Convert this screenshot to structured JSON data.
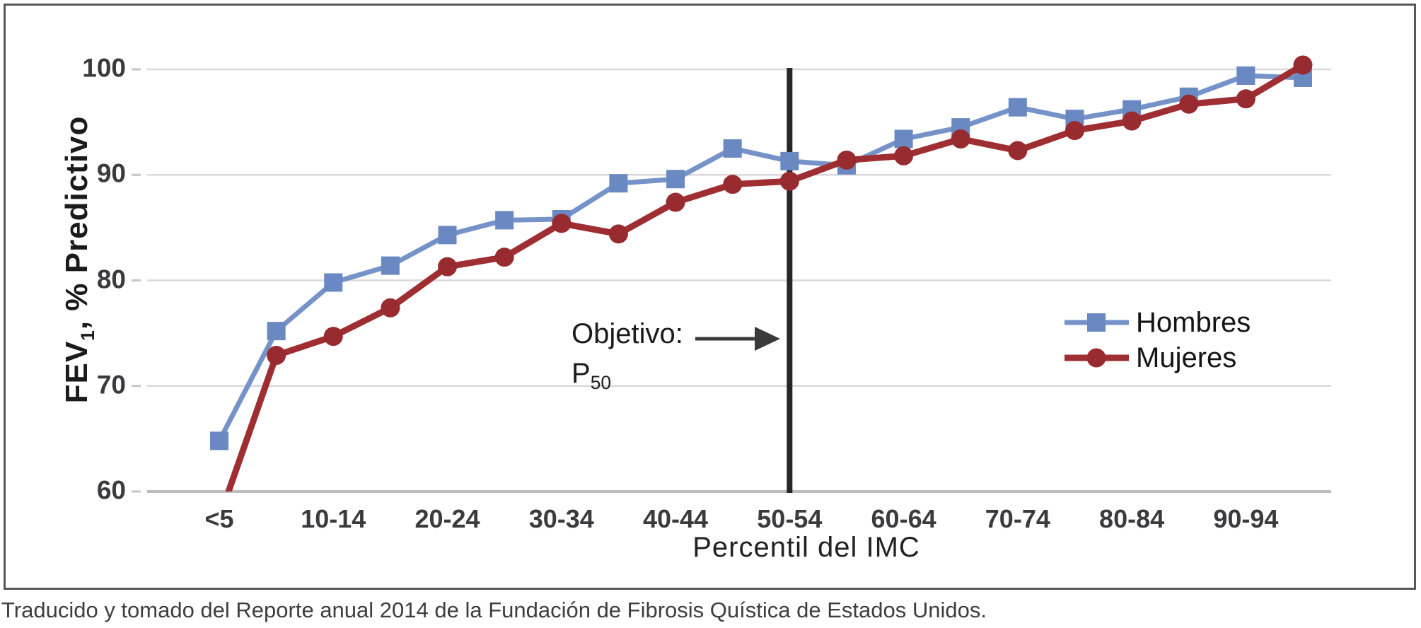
{
  "figure": {
    "caption": "Traducido y tomado del Reporte anual 2014 de la Fundación de Fibrosis Quística de Estados Unidos."
  },
  "chart_data": {
    "type": "line",
    "title": "",
    "xlabel": "Percentil del IMC",
    "ylabel": "FEV1, % Predictivo",
    "ylabel_parts": {
      "prefix": "FEV",
      "sub": "1",
      "suffix": ", % Predictivo"
    },
    "ylim": [
      60,
      100
    ],
    "y_ticks": [
      60,
      70,
      80,
      90,
      100
    ],
    "grid": "horizontal",
    "legend_position": "middle-right",
    "categories": [
      "<5",
      "5-9",
      "10-14",
      "15-19",
      "20-24",
      "25-29",
      "30-34",
      "35-39",
      "40-44",
      "45-49",
      "50-54",
      "55-59",
      "60-64",
      "65-69",
      "70-74",
      "75-79",
      "80-84",
      "85-89",
      "90-94",
      "95+"
    ],
    "x_tick_labels_visible": [
      "<5",
      "10-14",
      "20-24",
      "30-34",
      "40-44",
      "50-54",
      "60-64",
      "70-74",
      "80-84",
      "90-94"
    ],
    "series": [
      {
        "name": "Hombres",
        "marker": "square",
        "color": "#7693C9",
        "marker_color": "#6A88C2",
        "values": [
          64.8,
          75.2,
          79.8,
          81.4,
          84.3,
          85.7,
          85.8,
          89.2,
          89.6,
          92.5,
          91.3,
          90.9,
          93.4,
          94.5,
          96.4,
          95.3,
          96.2,
          97.4,
          99.4,
          99.2
        ]
      },
      {
        "name": "Mujeres",
        "marker": "circle",
        "color": "#9E2E31",
        "marker_color": "#982B2F",
        "values": [
          57.5,
          72.9,
          74.7,
          77.4,
          81.3,
          82.2,
          85.4,
          84.4,
          87.4,
          89.1,
          89.4,
          91.4,
          91.8,
          93.4,
          92.3,
          94.2,
          95.1,
          96.7,
          97.2,
          100.4
        ]
      }
    ],
    "annotation": {
      "line1": "Objetivo:",
      "line2_main": "P",
      "line2_sub": "50",
      "arrow_color": "#3A3A3A",
      "points_to_category": "50-54"
    },
    "target_line": {
      "at_category": "50-54",
      "color": "#262626"
    },
    "style": {
      "gridline_color": "#D9D9D9",
      "baseline_color": "#BDBDBD",
      "tick_mark_color": "#C6C6C6",
      "box_border_color": "#58585A"
    },
    "note": "Mujeres value at <5 falls below the 60 axis minimum; line is clipped at the baseline."
  }
}
